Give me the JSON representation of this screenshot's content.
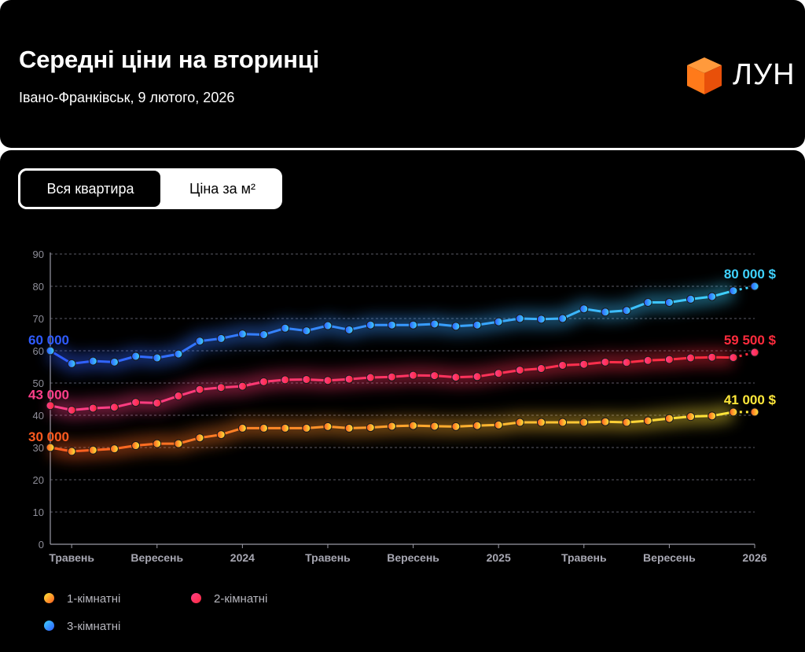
{
  "header": {
    "title": "Середні ціни на вторинці",
    "subtitle": "Івано-Франківськ, 9 лютого, 2026",
    "logo_text": "ЛУН"
  },
  "toggle": {
    "active_label": "Вся квартира",
    "inactive_label": "Ціна за м²"
  },
  "colors": {
    "one_room": "#ffcf2a",
    "two_room": "#ff2b55",
    "three_room": "#3fa0ff",
    "logo_orange": "#ff6a13"
  },
  "chart_data": {
    "type": "line",
    "title": "Середні ціни на вторинці",
    "xlabel": "",
    "ylabel": "",
    "ylim": [
      0,
      90
    ],
    "yticks": [
      "0",
      "10",
      "20",
      "30",
      "40",
      "50",
      "60",
      "70",
      "80",
      "90"
    ],
    "xticks": [
      {
        "index": 1,
        "label": "Травень"
      },
      {
        "index": 5,
        "label": "Вересень"
      },
      {
        "index": 9,
        "label": "2024"
      },
      {
        "index": 13,
        "label": "Травень"
      },
      {
        "index": 17,
        "label": "Вересень"
      },
      {
        "index": 21,
        "label": "2025"
      },
      {
        "index": 25,
        "label": "Травень"
      },
      {
        "index": 29,
        "label": "Вересень"
      },
      {
        "index": 33,
        "label": "2026"
      }
    ],
    "grid": true,
    "n_points": 34,
    "series": [
      {
        "name": "1-кімнатні",
        "key": "one_room",
        "colorFrom": "#ff5a1f",
        "colorTo": "#ffe83a",
        "values": [
          30.0,
          28.8,
          29.2,
          29.6,
          30.6,
          31.2,
          31.2,
          33.0,
          34.0,
          36.0,
          36.0,
          36.0,
          36.0,
          36.5,
          36.0,
          36.2,
          36.6,
          36.8,
          36.6,
          36.5,
          36.8,
          37.0,
          37.8,
          37.8,
          37.8,
          37.8,
          38.0,
          37.8,
          38.3,
          39.0,
          39.6,
          39.8,
          41.0,
          41.0
        ],
        "start_label": "30 000",
        "end_label": "41 000 $"
      },
      {
        "name": "2-кімнатні",
        "key": "two_room",
        "colorFrom": "#ff3f8a",
        "colorTo": "#ff2b3d",
        "values": [
          43.0,
          41.6,
          42.2,
          42.5,
          44.0,
          43.8,
          46.0,
          48.0,
          48.6,
          49.0,
          50.4,
          51.0,
          51.1,
          50.8,
          51.2,
          51.7,
          51.9,
          52.4,
          52.3,
          51.8,
          52.0,
          53.0,
          54.0,
          54.5,
          55.5,
          55.8,
          56.5,
          56.4,
          57.0,
          57.3,
          57.8,
          58.0,
          57.9,
          59.5
        ],
        "start_label": "43 000",
        "end_label": "59 500 $"
      },
      {
        "name": "3-кімнатні",
        "key": "three_room",
        "colorFrom": "#2f5bff",
        "colorTo": "#3fd2ff",
        "values": [
          60.0,
          56.0,
          56.8,
          56.5,
          58.3,
          57.8,
          59.0,
          63.0,
          63.8,
          65.2,
          65.0,
          67.0,
          66.2,
          67.8,
          66.5,
          68.0,
          68.0,
          68.0,
          68.3,
          67.6,
          68.0,
          69.0,
          70.0,
          69.8,
          70.0,
          73.0,
          72.0,
          72.5,
          75.0,
          75.0,
          76.0,
          76.8,
          78.6,
          80.0
        ],
        "start_label": "60 000",
        "end_label": "80 000 $"
      }
    ]
  }
}
